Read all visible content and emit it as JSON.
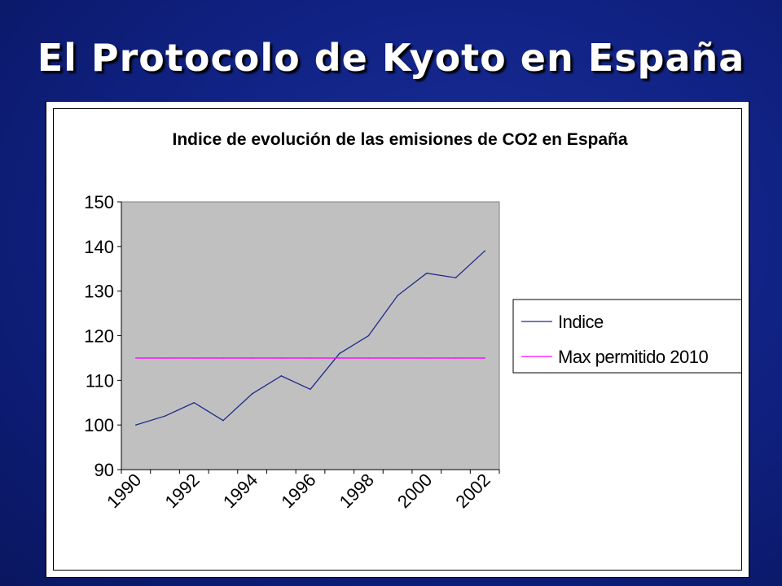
{
  "slide": {
    "title": "El Protocolo de Kyoto en España"
  },
  "chart_data": {
    "type": "line",
    "title": "Indice de evolución de las emisiones de CO2 en España",
    "xlabel": "",
    "ylabel": "",
    "x": [
      1990,
      1991,
      1992,
      1993,
      1994,
      1995,
      1996,
      1997,
      1998,
      1999,
      2000,
      2001,
      2002
    ],
    "xtick_labels": [
      "1990",
      "1992",
      "1994",
      "1996",
      "1998",
      "2000",
      "2002"
    ],
    "ylim": [
      90,
      150
    ],
    "yticks": [
      90,
      100,
      110,
      120,
      130,
      140,
      150
    ],
    "grid": false,
    "plot_background": "#c0c0c0",
    "legend_position": "right",
    "series": [
      {
        "name": "Indice",
        "color": "#1f2a8c",
        "values": [
          100,
          102,
          105,
          101,
          107,
          111,
          108,
          116,
          120,
          129,
          134,
          133,
          139
        ]
      },
      {
        "name": "Max permitido 2010",
        "color": "#ff00ff",
        "values": [
          115,
          115,
          115,
          115,
          115,
          115,
          115,
          115,
          115,
          115,
          115,
          115,
          115
        ]
      }
    ]
  }
}
